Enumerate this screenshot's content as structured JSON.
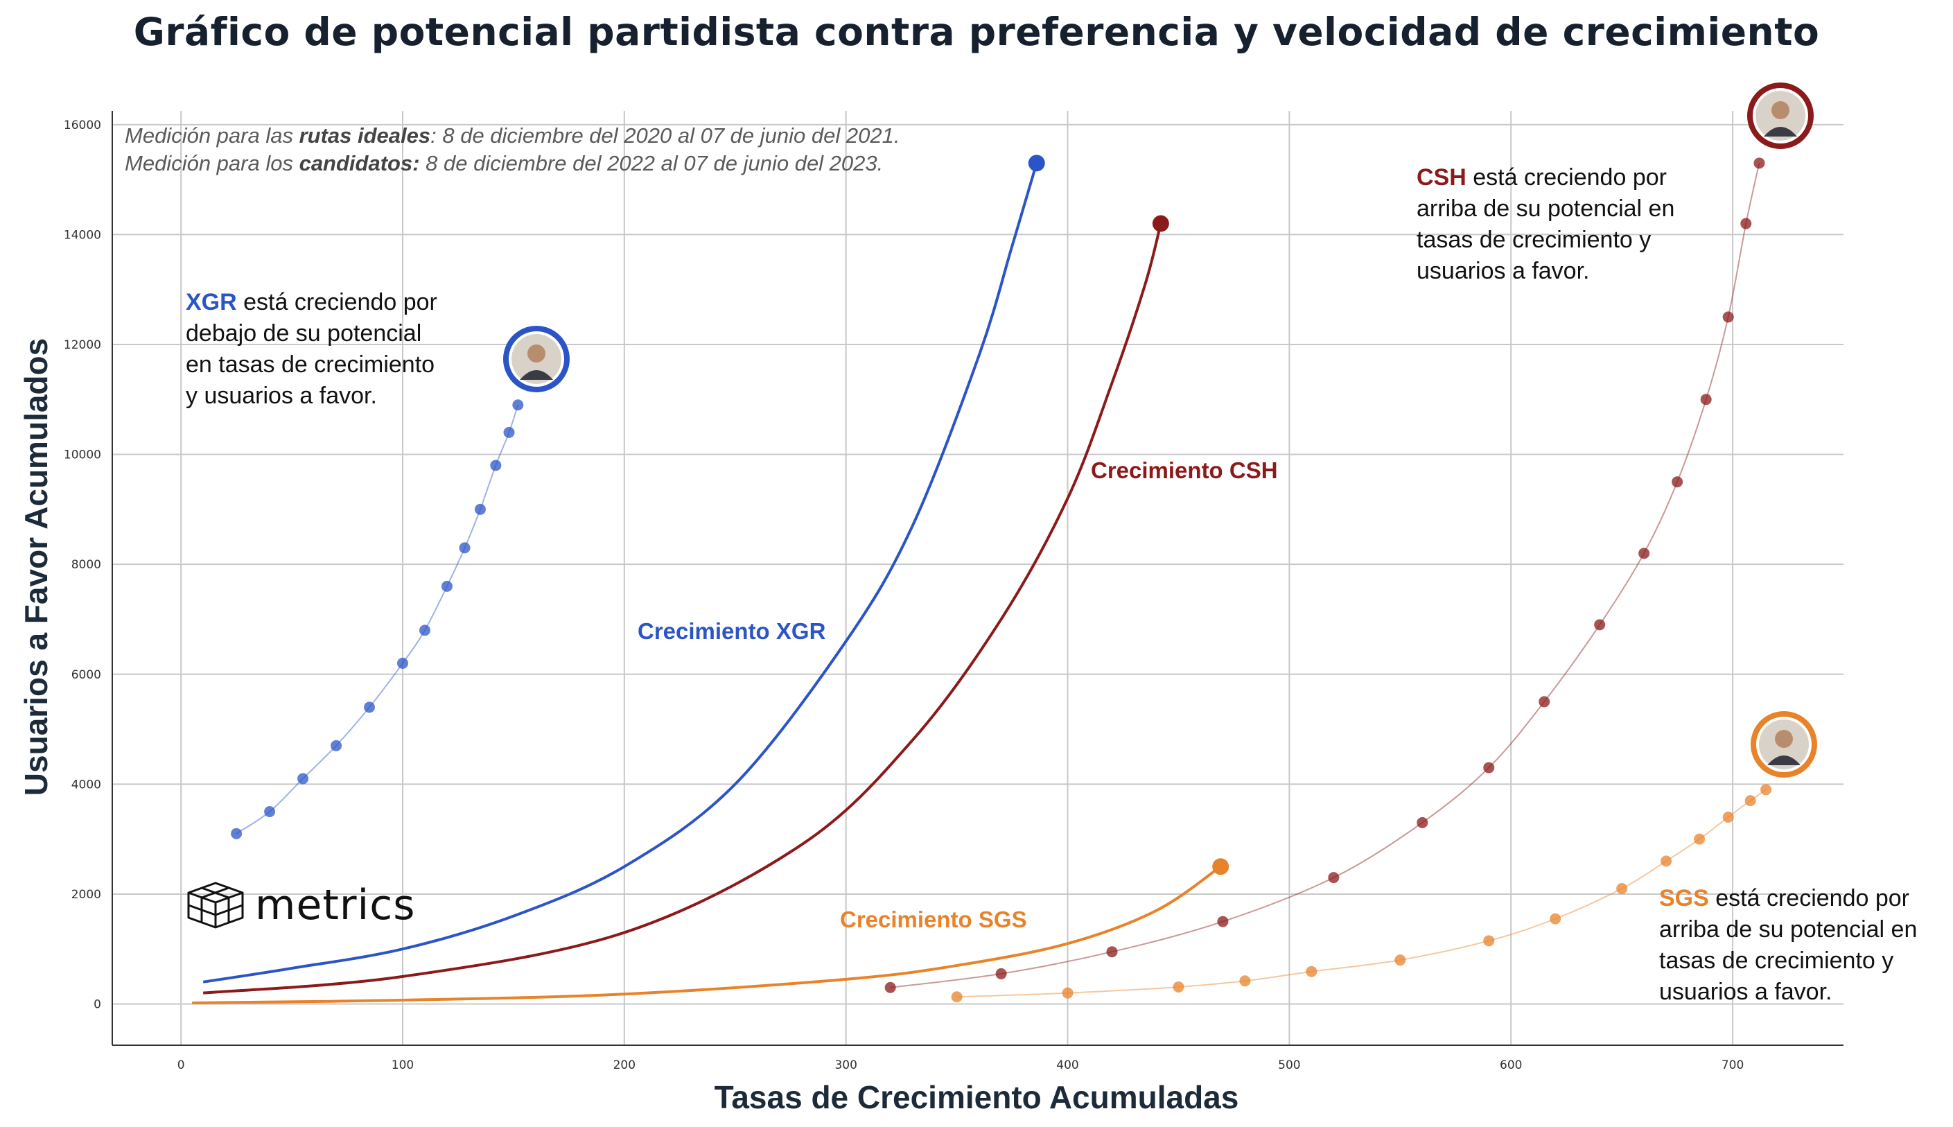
{
  "title": "Gráfico de potencial partidista contra preferencia y velocidad de crecimiento",
  "note": {
    "line1_a": "Medición para las ",
    "line1_b": "rutas ideales",
    "line1_c": ": 8 de diciembre del 2020 al 07 de junio del 2021.",
    "line2_a": "Medición para los ",
    "line2_b": "candidatos:",
    "line2_c": " 8 de diciembre del 2022 al 07 de junio del 2023."
  },
  "annotations": {
    "xgr": {
      "tag": "XGR",
      "lines": [
        " está creciendo por",
        "debajo de su potencial",
        "en tasas de crecimiento",
        "y usuarios a favor."
      ]
    },
    "csh": {
      "tag": "CSH",
      "lines": [
        " está creciendo por",
        "arriba de su potencial en",
        "tasas de crecimiento y",
        "usuarios a favor."
      ]
    },
    "sgs": {
      "tag": "SGS",
      "lines": [
        " está creciendo por",
        "arriba de su potencial en",
        "tasas de crecimiento y",
        "usuarios a favor."
      ]
    }
  },
  "logo_text": "metrics",
  "colors": {
    "xgr": "#2b55c7",
    "csh": "#8b1a1a",
    "sgs": "#e8832a",
    "grid": "#c8c8c8",
    "text": "#16202e"
  },
  "icons": {
    "logo": "isometric-cube-grid-icon",
    "avatar_xgr": "candidate-portrait-icon",
    "avatar_csh": "candidate-portrait-icon",
    "avatar_sgs": "candidate-portrait-icon"
  },
  "chart_data": {
    "type": "line",
    "xlabel": "Tasas de Crecimiento Acumuladas",
    "ylabel": "Usuarios a Favor Acumulados",
    "xlim": [
      -31,
      750
    ],
    "ylim": [
      -750,
      16250
    ],
    "xticks": [
      0,
      100,
      200,
      300,
      400,
      500,
      600,
      700
    ],
    "yticks": [
      0,
      2000,
      4000,
      6000,
      8000,
      10000,
      12000,
      14000,
      16000
    ],
    "grid": true,
    "series": [
      {
        "name": "Crecimiento XGR",
        "style": "line",
        "color": "#2b55c7",
        "x": [
          10,
          50,
          100,
          150,
          200,
          250,
          300,
          330,
          360,
          375,
          386
        ],
        "y": [
          400,
          650,
          1000,
          1600,
          2500,
          4000,
          6600,
          8700,
          11800,
          13800,
          15300
        ]
      },
      {
        "name": "Crecimiento CSH",
        "style": "line",
        "color": "#8b1a1a",
        "x": [
          10,
          100,
          200,
          280,
          330,
          370,
          400,
          420,
          435,
          442
        ],
        "y": [
          200,
          500,
          1300,
          2900,
          4800,
          7000,
          9200,
          11300,
          13100,
          14200
        ]
      },
      {
        "name": "Crecimiento SGS",
        "style": "line",
        "color": "#e8832a",
        "x": [
          5,
          100,
          200,
          300,
          350,
          400,
          440,
          469
        ],
        "y": [
          20,
          70,
          180,
          450,
          700,
          1100,
          1700,
          2500
        ]
      },
      {
        "name": "XGR",
        "style": "scatter",
        "color": "#2b55c7",
        "x": [
          25,
          40,
          55,
          70,
          85,
          100,
          110,
          120,
          128,
          135,
          142,
          148,
          152
        ],
        "y": [
          3100,
          3500,
          4100,
          4700,
          5400,
          6200,
          6800,
          7600,
          8300,
          9000,
          9800,
          10400,
          10900
        ]
      },
      {
        "name": "CSH",
        "style": "scatter",
        "color": "#8b1a1a",
        "x": [
          320,
          370,
          420,
          470,
          520,
          560,
          590,
          615,
          640,
          660,
          675,
          688,
          698,
          706,
          712
        ],
        "y": [
          300,
          550,
          950,
          1500,
          2300,
          3300,
          4300,
          5500,
          6900,
          8200,
          9500,
          11000,
          12500,
          14200,
          15300
        ]
      },
      {
        "name": "SGS",
        "style": "scatter",
        "color": "#e8832a",
        "x": [
          350,
          400,
          450,
          480,
          510,
          550,
          590,
          620,
          650,
          670,
          685,
          698,
          708,
          715
        ],
        "y": [
          130,
          200,
          310,
          420,
          590,
          800,
          1150,
          1550,
          2100,
          2600,
          3000,
          3400,
          3700,
          3900
        ]
      }
    ],
    "labels": {
      "xgr": "Crecimiento XGR",
      "csh": "Crecimiento CSH",
      "sgs": "Crecimiento SGS"
    }
  }
}
